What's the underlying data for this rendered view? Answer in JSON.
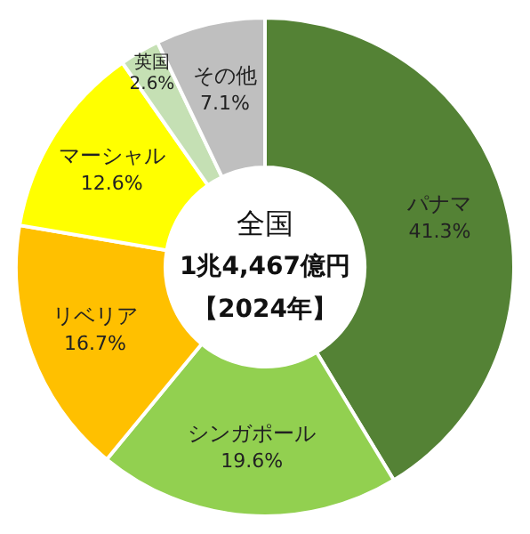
{
  "chart_data": {
    "type": "donut",
    "categories": [
      "パナマ",
      "シンガポール",
      "リベリア",
      "マーシャル",
      "英国",
      "その他"
    ],
    "values": [
      41.3,
      19.6,
      16.7,
      12.6,
      2.6,
      7.1
    ],
    "value_labels": [
      "41.3%",
      "19.6%",
      "16.7%",
      "12.6%",
      "2.6%",
      "7.1%"
    ],
    "colors": [
      "#548235",
      "#92d050",
      "#ffc000",
      "#ffff00",
      "#c5e0b4",
      "#bfbfbf"
    ],
    "annotations": [
      "全国",
      "1兆4,467億円",
      "【2024年】"
    ]
  }
}
